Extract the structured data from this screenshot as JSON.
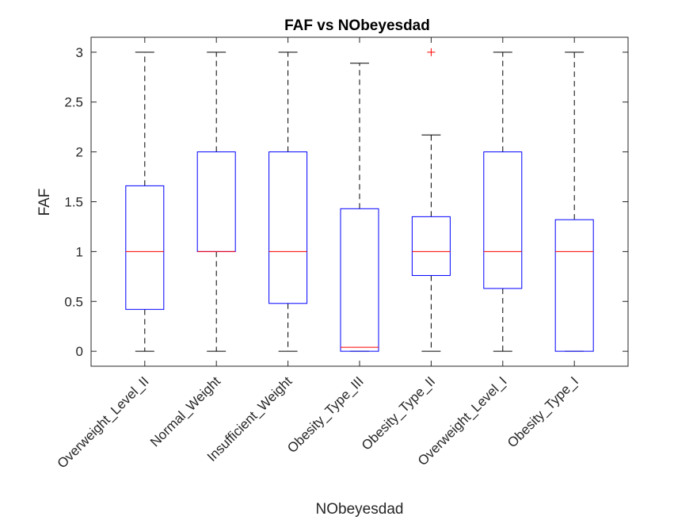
{
  "chart_data": {
    "type": "box",
    "title": "FAF vs NObeyesdad",
    "xlabel": "NObeyesdad",
    "ylabel": "FAF",
    "ylim": [
      -0.15,
      3.15
    ],
    "yticks": [
      0,
      0.5,
      1,
      1.5,
      2,
      2.5,
      3
    ],
    "ytick_labels": [
      "0",
      "0.5",
      "1",
      "1.5",
      "2",
      "2.5",
      "3"
    ],
    "categories": [
      "Overweight_Level_II",
      "Normal_Weight",
      "Insufficient_Weight",
      "Obesity_Type_III",
      "Obesity_Type_II",
      "Overweight_Level_I",
      "Obesity_Type_I"
    ],
    "boxes": [
      {
        "whisker_low": 0,
        "q1": 0.42,
        "median": 1,
        "q3": 1.66,
        "whisker_high": 3,
        "outliers": []
      },
      {
        "whisker_low": 0,
        "q1": 1,
        "median": 1,
        "q3": 2,
        "whisker_high": 3,
        "outliers": []
      },
      {
        "whisker_low": 0,
        "q1": 0.48,
        "median": 1,
        "q3": 2,
        "whisker_high": 3,
        "outliers": []
      },
      {
        "whisker_low": 0,
        "q1": 0,
        "median": 0.04,
        "q3": 1.43,
        "whisker_high": 2.89,
        "outliers": []
      },
      {
        "whisker_low": 0,
        "q1": 0.76,
        "median": 1,
        "q3": 1.35,
        "whisker_high": 2.17,
        "outliers": [
          3
        ]
      },
      {
        "whisker_low": 0,
        "q1": 0.63,
        "median": 1,
        "q3": 2,
        "whisker_high": 3,
        "outliers": []
      },
      {
        "whisker_low": 0,
        "q1": 0,
        "median": 1,
        "q3": 1.32,
        "whisker_high": 3,
        "outliers": []
      }
    ],
    "grid": false,
    "colors": {
      "box": "#0000ff",
      "median": "#ff0000",
      "whisker": "#000000",
      "outlier": "#ff0000",
      "axis": "#262626"
    }
  }
}
